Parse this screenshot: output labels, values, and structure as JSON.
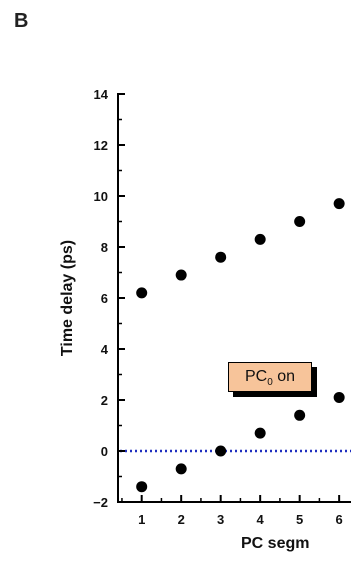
{
  "panel_label": "B",
  "chart_data": {
    "type": "scatter",
    "ylabel": "Time delay (ps)",
    "xlabel": "PC segm",
    "xlim": [
      0.4,
      6.3
    ],
    "ylim": [
      -2,
      14
    ],
    "x_ticks": [
      1,
      2,
      3,
      4,
      5,
      6
    ],
    "y_ticks": [
      -2,
      0,
      2,
      4,
      6,
      8,
      10,
      12,
      14
    ],
    "reference_line": {
      "y": 0,
      "style": "dotted",
      "color": "#1f2fbf"
    },
    "marker_color": "#000000",
    "series": [
      {
        "x": [
          1,
          2,
          3,
          4,
          5,
          6
        ],
        "y": [
          6.2,
          6.9,
          7.6,
          8.3,
          9.0,
          9.7
        ]
      },
      {
        "x": [
          1,
          2,
          3,
          4,
          5,
          6
        ],
        "y": [
          -1.4,
          -0.7,
          0.0,
          0.7,
          1.4,
          2.1
        ]
      }
    ],
    "annotation": {
      "text_main": "PC",
      "text_sub": "0",
      "text_suffix": " on",
      "fill": "#f7c49a"
    }
  }
}
